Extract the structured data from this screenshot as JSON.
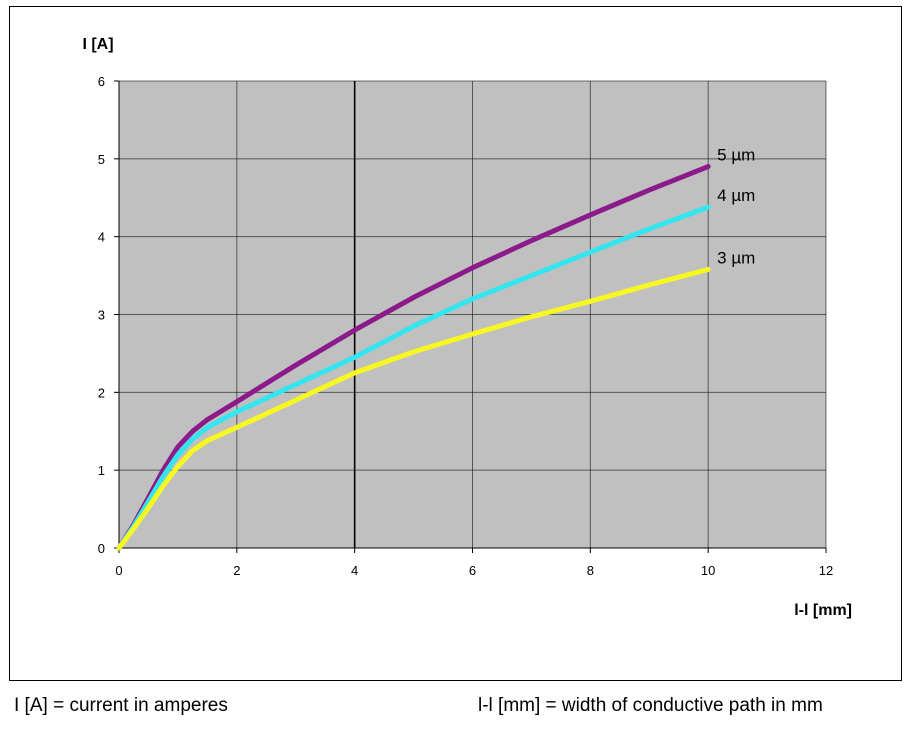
{
  "chart_data": {
    "type": "line",
    "ylabel": "I [A]",
    "xlabel": "l-l [mm]",
    "xlim": [
      0,
      12
    ],
    "ylim": [
      0,
      6
    ],
    "xticks": [
      0,
      2,
      4,
      6,
      8,
      10,
      12
    ],
    "yticks": [
      0,
      1,
      2,
      3,
      4,
      5,
      6
    ],
    "grid": true,
    "plot_background": "#c0c0c0",
    "series": [
      {
        "name": "5 µm",
        "color": "#8b1a8b",
        "x": [
          0,
          0.25,
          0.5,
          0.75,
          1.0,
          1.25,
          1.5,
          2,
          3,
          4,
          5,
          6,
          7,
          8,
          9,
          10
        ],
        "y": [
          0,
          0.3,
          0.65,
          1.0,
          1.3,
          1.5,
          1.65,
          1.88,
          2.35,
          2.8,
          3.22,
          3.6,
          3.95,
          4.28,
          4.6,
          4.9
        ]
      },
      {
        "name": "4 µm",
        "color": "#33e5ee",
        "x": [
          0,
          0.25,
          0.5,
          0.75,
          1.0,
          1.25,
          1.5,
          2,
          3,
          4,
          5,
          6,
          7,
          8,
          9,
          10
        ],
        "y": [
          0,
          0.28,
          0.6,
          0.92,
          1.2,
          1.4,
          1.55,
          1.75,
          2.1,
          2.45,
          2.85,
          3.2,
          3.5,
          3.8,
          4.1,
          4.38
        ]
      },
      {
        "name": "3 µm",
        "color": "#f7f722",
        "x": [
          0,
          0.25,
          0.5,
          0.75,
          1.0,
          1.25,
          1.5,
          2,
          3,
          4,
          5,
          6,
          7,
          8,
          9,
          10
        ],
        "y": [
          0,
          0.25,
          0.52,
          0.8,
          1.05,
          1.25,
          1.38,
          1.55,
          1.9,
          2.25,
          2.52,
          2.75,
          2.97,
          3.17,
          3.38,
          3.58
        ]
      }
    ],
    "curve_labels": [
      {
        "text": "5 µm",
        "series": 0
      },
      {
        "text": "4 µm",
        "series": 1
      },
      {
        "text": "3 µm",
        "series": 2
      }
    ]
  },
  "captions": {
    "left": "I [A] = current in amperes",
    "right": "l-l [mm] = width of conductive path in mm"
  }
}
